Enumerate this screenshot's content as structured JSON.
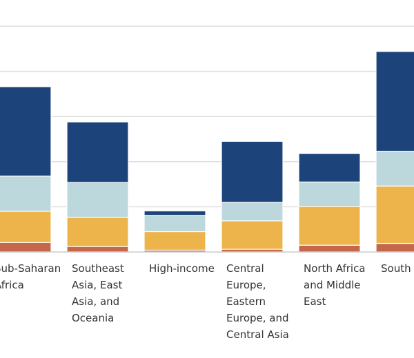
{
  "chart_data": {
    "type": "bar",
    "stacked": true,
    "grid": true,
    "title": "",
    "xlabel": "",
    "ylabel": "",
    "ylim": [
      0,
      5
    ],
    "gridlines": [
      0,
      1,
      2,
      3,
      4,
      5
    ],
    "categories": [
      [
        "Sub-Saharan",
        "Africa"
      ],
      [
        "Southeast",
        "Asia, East",
        "Asia, and",
        "Oceania"
      ],
      [
        "High-income"
      ],
      [
        "Central",
        "Europe,",
        "Eastern",
        "Europe, and",
        "Central Asia"
      ],
      [
        "North Africa",
        "and Middle",
        "East"
      ],
      [
        "South Asia"
      ]
    ],
    "series": [
      {
        "color": "#c4674a",
        "values": [
          0.21,
          0.12,
          0.04,
          0.06,
          0.15,
          0.19
        ]
      },
      {
        "color": "#ecb44a",
        "values": [
          0.69,
          0.65,
          0.41,
          0.63,
          0.86,
          1.27
        ]
      },
      {
        "color": "#bcd8dc",
        "values": [
          0.78,
          0.77,
          0.36,
          0.41,
          0.54,
          0.77
        ]
      },
      {
        "color": "#1c447a",
        "values": [
          1.98,
          1.34,
          0.1,
          1.35,
          0.63,
          2.21
        ]
      }
    ]
  }
}
